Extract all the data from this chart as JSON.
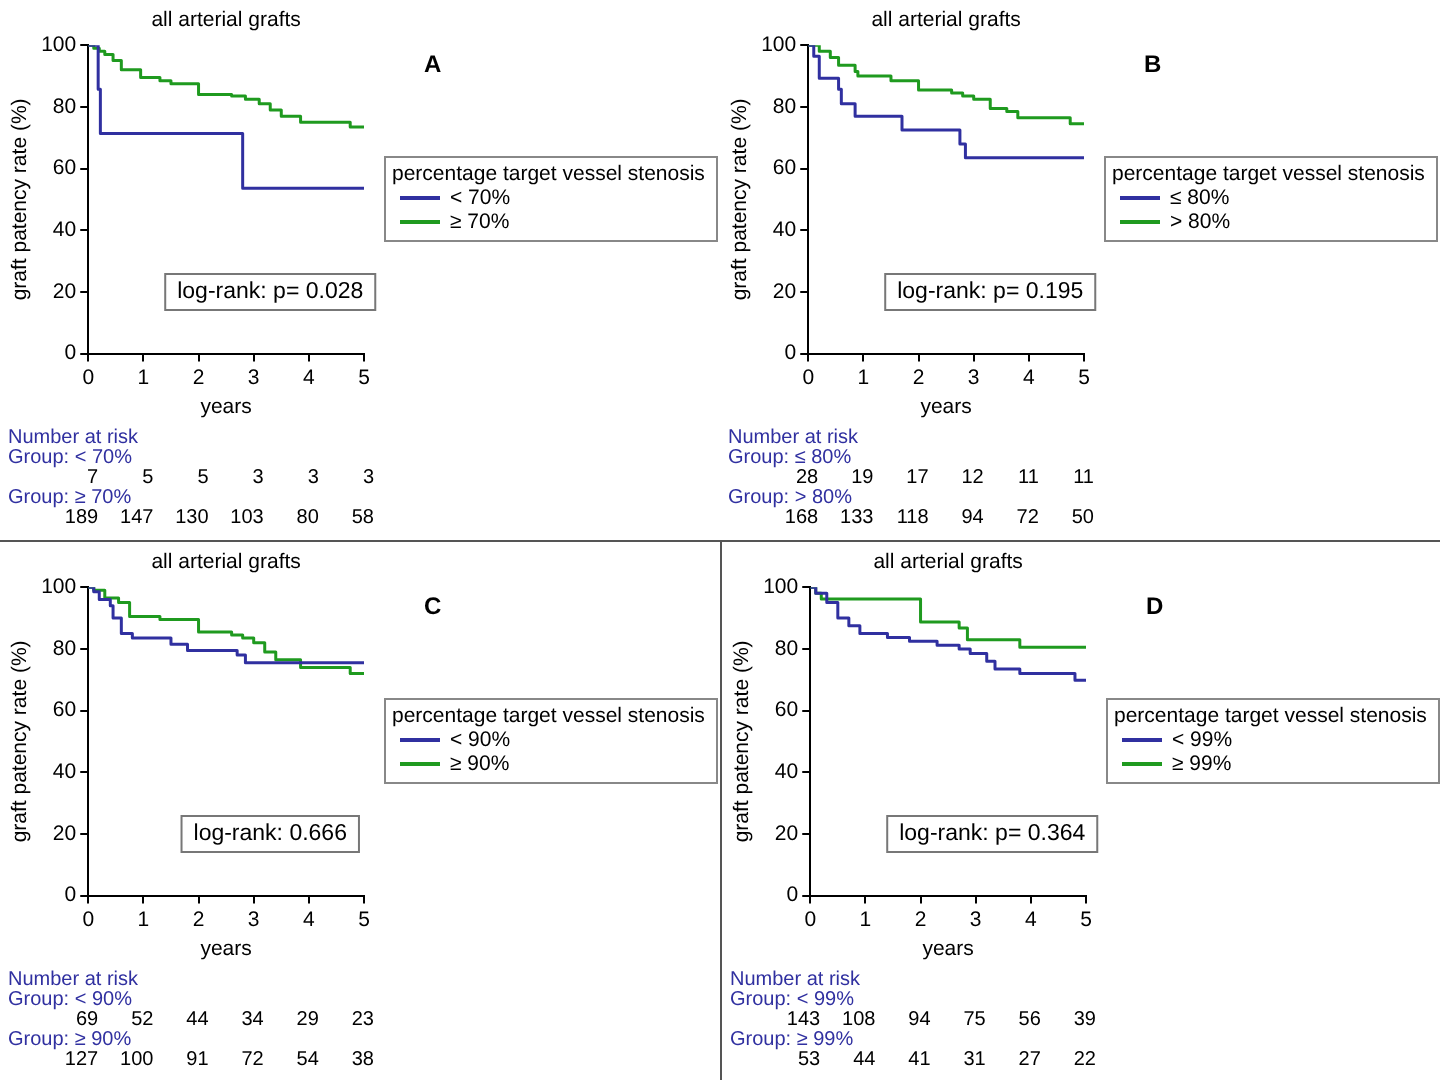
{
  "chart_data": [
    {
      "type": "step",
      "title": "all arterial grafts",
      "xlabel": "years",
      "ylabel": "graft patency rate (%)",
      "legend_title": "percentage target vessel stenosis",
      "legend": "right",
      "grid": false,
      "xlim": [
        0,
        5
      ],
      "xticks": [
        0,
        1,
        2,
        3,
        4,
        5
      ],
      "ylim": [
        0,
        100
      ],
      "yticks": [
        0,
        20,
        40,
        60,
        80,
        100
      ],
      "annotations": [
        "A",
        "log-rank: p= 0.028",
        "Number at risk",
        "Group: < 70%",
        "7 5 5 3 3 3",
        "Group: ≥ 70%",
        "189 147 130 103 80 58"
      ],
      "series": [
        {
          "name": "< 70%",
          "color": "#3030a0",
          "x": [
            0,
            0.18,
            0.22,
            2.8,
            5
          ],
          "values": [
            100,
            85.7,
            71.4,
            53.6,
            53.6
          ]
        },
        {
          "name": "≥ 70%",
          "color": "#1f9a1f",
          "x": [
            0,
            0.1,
            0.2,
            0.3,
            0.45,
            0.6,
            0.95,
            1.3,
            1.5,
            2.0,
            2.6,
            2.85,
            3.1,
            3.3,
            3.5,
            3.85,
            4.75,
            5
          ],
          "values": [
            100,
            99,
            98,
            97,
            95,
            92,
            89.5,
            88.5,
            87.5,
            84,
            83.5,
            82.5,
            81,
            79,
            77,
            75,
            73.5,
            73.5
          ]
        }
      ]
    },
    {
      "type": "step",
      "title": "all arterial grafts",
      "xlabel": "years",
      "ylabel": "graft patency rate (%)",
      "legend_title": "percentage target vessel stenosis",
      "legend": "right",
      "grid": false,
      "xlim": [
        0,
        5
      ],
      "xticks": [
        0,
        1,
        2,
        3,
        4,
        5
      ],
      "ylim": [
        0,
        100
      ],
      "yticks": [
        0,
        20,
        40,
        60,
        80,
        100
      ],
      "annotations": [
        "B",
        "log-rank: p= 0.195",
        "Number at risk",
        "Group: ≤ 80%",
        "28 19 17 12 11 11",
        "Group: > 80%",
        "168 133 118 94 72 50"
      ],
      "series": [
        {
          "name": "≤ 80%",
          "color": "#3030a0",
          "x": [
            0,
            0.1,
            0.2,
            0.55,
            0.6,
            0.85,
            1.7,
            2.75,
            2.85,
            5
          ],
          "values": [
            100,
            96.4,
            89.3,
            85.7,
            81,
            77,
            72.5,
            68,
            63.5,
            63.5
          ]
        },
        {
          "name": "> 80%",
          "color": "#1f9a1f",
          "x": [
            0,
            0.2,
            0.4,
            0.55,
            0.85,
            0.9,
            1.5,
            2.0,
            2.6,
            2.8,
            3.0,
            3.3,
            3.6,
            3.8,
            4.75,
            5
          ],
          "values": [
            100,
            98,
            96,
            93.5,
            91.5,
            90,
            88.5,
            85.5,
            84.5,
            83.5,
            82.5,
            79.5,
            78.5,
            76.5,
            74.5,
            74.5
          ]
        }
      ]
    },
    {
      "type": "step",
      "title": "all arterial grafts",
      "xlabel": "years",
      "ylabel": "graft patency rate (%)",
      "legend_title": "percentage target vessel stenosis",
      "legend": "right",
      "grid": false,
      "xlim": [
        0,
        5
      ],
      "xticks": [
        0,
        1,
        2,
        3,
        4,
        5
      ],
      "ylim": [
        0,
        100
      ],
      "yticks": [
        0,
        20,
        40,
        60,
        80,
        100
      ],
      "annotations": [
        "C",
        "log-rank: 0.666",
        "Number at risk",
        "Group: < 90%",
        "69 52 44 34 29 23",
        "Group: ≥ 90%",
        "127 100 91 72 54 38"
      ],
      "series": [
        {
          "name": "< 90%",
          "color": "#3030a0",
          "x": [
            0,
            0.1,
            0.2,
            0.4,
            0.45,
            0.6,
            0.8,
            1.5,
            1.8,
            2.7,
            2.85,
            5
          ],
          "values": [
            100,
            98.5,
            96,
            94,
            90,
            85,
            83.5,
            81.5,
            79.5,
            78,
            75.5,
            75.5
          ]
        },
        {
          "name": "≥ 90%",
          "color": "#1f9a1f",
          "x": [
            0,
            0.1,
            0.3,
            0.55,
            0.75,
            1.3,
            2.0,
            2.6,
            2.8,
            3.0,
            3.2,
            3.4,
            3.85,
            4.75,
            5
          ],
          "values": [
            100,
            99,
            96.5,
            95,
            90.5,
            89.5,
            85.5,
            84.5,
            83.5,
            82,
            79,
            76.5,
            74,
            72,
            72
          ]
        }
      ]
    },
    {
      "type": "step",
      "title": "all arterial grafts",
      "xlabel": "years",
      "ylabel": "graft patency rate (%)",
      "legend_title": "percentage target vessel stenosis",
      "legend": "right",
      "grid": false,
      "xlim": [
        0,
        5
      ],
      "xticks": [
        0,
        1,
        2,
        3,
        4,
        5
      ],
      "ylim": [
        0,
        100
      ],
      "yticks": [
        0,
        20,
        40,
        60,
        80,
        100
      ],
      "annotations": [
        "D",
        "log-rank: p= 0.364",
        "Number at risk",
        "Group: < 99%",
        "143 108 94 75 56 39",
        "Group: ≥ 99%",
        "53 44 41 31 27 22"
      ],
      "series": [
        {
          "name": "< 99%",
          "color": "#3030a0",
          "x": [
            0,
            0.1,
            0.3,
            0.5,
            0.7,
            0.9,
            1.4,
            1.8,
            2.3,
            2.7,
            2.9,
            3.2,
            3.35,
            3.8,
            4.8,
            5
          ],
          "values": [
            100,
            98,
            95,
            90,
            87.5,
            85,
            83.7,
            82.5,
            81.2,
            80,
            78.5,
            76,
            73.5,
            72,
            69.8,
            69.8
          ]
        },
        {
          "name": "≥ 99%",
          "color": "#1f9a1f",
          "x": [
            0,
            0.1,
            0.2,
            2.0,
            2.7,
            2.85,
            3.8,
            5
          ],
          "values": [
            100,
            98,
            96.2,
            88.7,
            86.8,
            83,
            80.5,
            80.5
          ]
        }
      ]
    }
  ]
}
